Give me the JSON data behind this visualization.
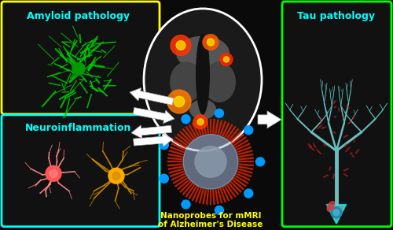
{
  "bg_color": "#0a0a0a",
  "title_line1": "Nanoprobes for mMRI",
  "title_line2": "of Alzheimer's Disease",
  "title_color": "#ffff00",
  "amyloid_label": "Amyloid pathology",
  "amyloid_label_color": "#00ffff",
  "amyloid_box_color": "#ffff00",
  "tau_label": "Tau pathology",
  "tau_label_color": "#00ffff",
  "tau_box_color": "#00ff00",
  "neuro_label": "Neuroinflammation",
  "neuro_label_color": "#00ffff",
  "neuro_box_color": "#00ffff",
  "arrow_color": "#ffffff",
  "amyloid_green": "#00cc00",
  "amyloid_center": "#009900",
  "neuron1_color": "#ff8888",
  "neuron1_body": "#ff5555",
  "neuron2_color": "#cc8800",
  "neuron2_body": "#ffaa00",
  "nanoparticle_red": "#cc2200",
  "nanoparticle_inner": "#aabbdd",
  "nanoparticle_dots": "#0099ff",
  "brain_outline": "#ffffff"
}
